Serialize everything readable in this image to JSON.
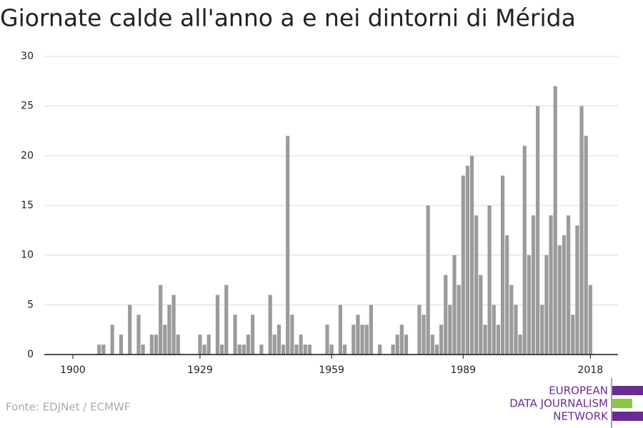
{
  "chart_data": {
    "type": "bar",
    "title": "Giornate calde all'anno a e nei dintorni di Mérida",
    "source": "Fonte: EDJNet / ECMWF",
    "logo": [
      "EUROPEAN",
      "DATA JOURNALISM",
      "NETWORK"
    ],
    "color": "#9b9b9b",
    "x": [
      1900,
      1901,
      1902,
      1903,
      1904,
      1905,
      1906,
      1907,
      1908,
      1909,
      1910,
      1911,
      1912,
      1913,
      1914,
      1915,
      1916,
      1917,
      1918,
      1919,
      1920,
      1921,
      1922,
      1923,
      1924,
      1925,
      1926,
      1927,
      1928,
      1929,
      1930,
      1931,
      1932,
      1933,
      1934,
      1935,
      1936,
      1937,
      1938,
      1939,
      1940,
      1941,
      1942,
      1943,
      1944,
      1945,
      1946,
      1947,
      1948,
      1949,
      1950,
      1951,
      1952,
      1953,
      1954,
      1955,
      1956,
      1957,
      1958,
      1959,
      1960,
      1961,
      1962,
      1963,
      1964,
      1965,
      1966,
      1967,
      1968,
      1969,
      1970,
      1971,
      1972,
      1973,
      1974,
      1975,
      1976,
      1977,
      1978,
      1979,
      1980,
      1981,
      1982,
      1983,
      1984,
      1985,
      1986,
      1987,
      1988,
      1989,
      1990,
      1991,
      1992,
      1993,
      1994,
      1995,
      1996,
      1997,
      1998,
      1999,
      2000,
      2001,
      2002,
      2003,
      2004,
      2005,
      2006,
      2007,
      2008,
      2009,
      2010,
      2011,
      2012,
      2013,
      2014,
      2015,
      2016,
      2017,
      2018
    ],
    "values": [
      0,
      0,
      0,
      0,
      0,
      0,
      1,
      1,
      0,
      3,
      0,
      2,
      0,
      5,
      0,
      4,
      1,
      0,
      2,
      2,
      7,
      3,
      5,
      6,
      2,
      0,
      0,
      0,
      0,
      2,
      1,
      2,
      0,
      6,
      1,
      7,
      0,
      4,
      1,
      1,
      2,
      4,
      0,
      1,
      0,
      6,
      2,
      3,
      1,
      22,
      4,
      1,
      2,
      1,
      1,
      0,
      0,
      0,
      3,
      1,
      0,
      5,
      1,
      0,
      3,
      4,
      3,
      3,
      5,
      0,
      1,
      0,
      0,
      1,
      2,
      3,
      2,
      0,
      0,
      5,
      4,
      15,
      2,
      1,
      3,
      8,
      5,
      10,
      7,
      18,
      19,
      20,
      14,
      8,
      3,
      15,
      5,
      3,
      18,
      12,
      7,
      5,
      2,
      21,
      10,
      14,
      25,
      5,
      10,
      14,
      27,
      11,
      12,
      14,
      4,
      13,
      25,
      22,
      7
    ],
    "xlim": [
      1893.5,
      2024.3
    ],
    "xticks": [
      1900,
      1929,
      1959,
      1989,
      2018
    ],
    "ylim": [
      0,
      30
    ],
    "yticks": [
      0,
      5,
      10,
      15,
      20,
      25,
      30
    ],
    "grid": true
  }
}
